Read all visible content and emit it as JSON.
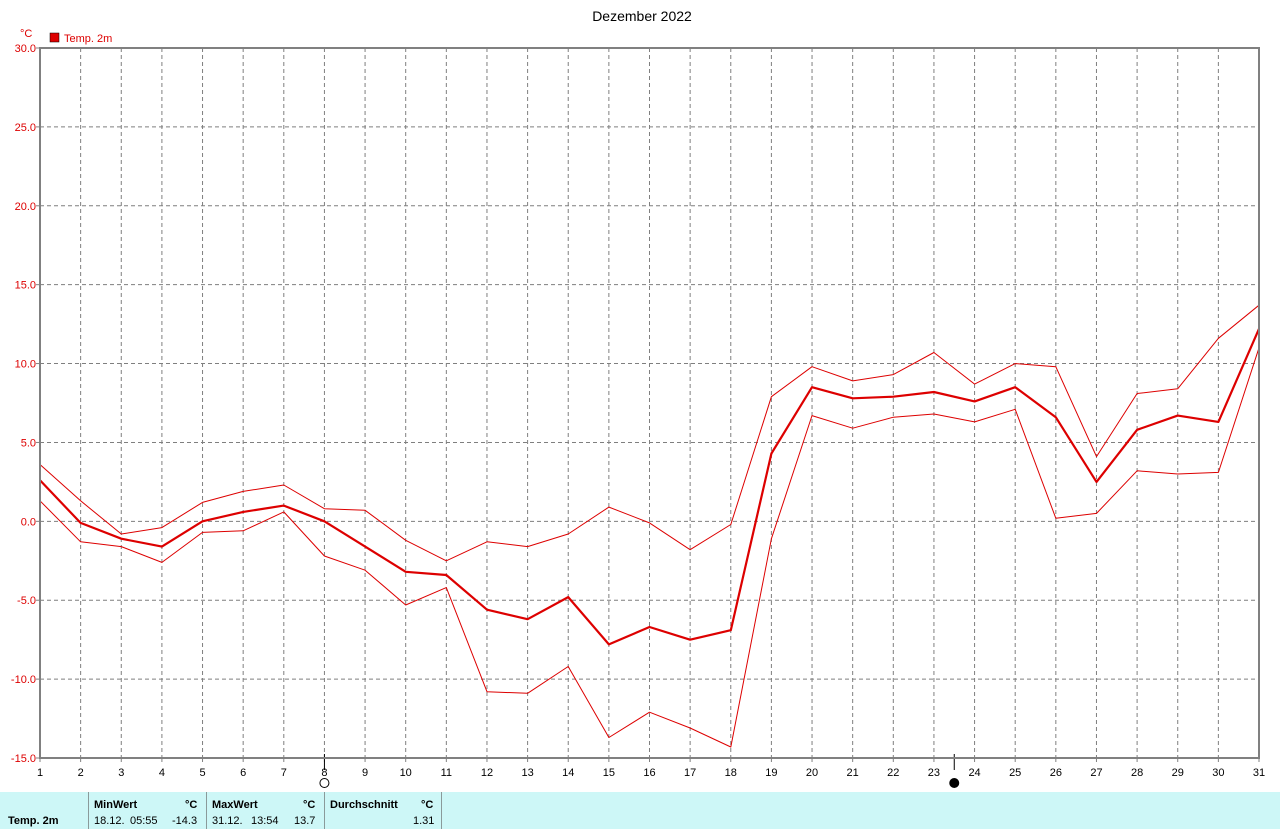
{
  "chart_data": {
    "type": "line",
    "title": "Dezember 2022",
    "ylabel": "°C",
    "ylim": [
      -15,
      30
    ],
    "yticks": [
      "30.0",
      "25.0",
      "20.0",
      "15.0",
      "10.0",
      "5.0",
      "0.0",
      "-5.0",
      "-10.0",
      "-15.0"
    ],
    "ytick_values": [
      30,
      25,
      20,
      15,
      10,
      5,
      0,
      -5,
      -10,
      -15
    ],
    "x": [
      1,
      2,
      3,
      4,
      5,
      6,
      7,
      8,
      9,
      10,
      11,
      12,
      13,
      14,
      15,
      16,
      17,
      18,
      19,
      20,
      21,
      22,
      23,
      24,
      25,
      26,
      27,
      28,
      29,
      30,
      31
    ],
    "xlim": [
      1,
      31
    ],
    "grid": true,
    "legend_position": "top-left",
    "legend": [
      "Temp. 2m"
    ],
    "series": [
      {
        "name": "Temp. 2m",
        "role": "mean",
        "color": "#dd0000",
        "values": [
          2.6,
          -0.1,
          -1.1,
          -1.6,
          0.0,
          0.6,
          1.0,
          0.0,
          -1.6,
          -3.2,
          -3.4,
          -5.6,
          -6.2,
          -4.8,
          -7.8,
          -6.7,
          -7.5,
          -6.9,
          4.3,
          8.5,
          7.8,
          7.9,
          8.2,
          7.6,
          8.5,
          6.6,
          2.5,
          5.8,
          6.7,
          6.3,
          12.2
        ]
      },
      {
        "role": "max",
        "color": "#dd0000",
        "values": [
          3.6,
          1.3,
          -0.8,
          -0.4,
          1.2,
          1.9,
          2.3,
          0.8,
          0.7,
          -1.2,
          -2.5,
          -1.3,
          -1.6,
          -0.8,
          0.9,
          -0.1,
          -1.8,
          -0.2,
          7.9,
          9.8,
          8.9,
          9.3,
          10.7,
          8.7,
          10.0,
          9.8,
          4.1,
          8.1,
          8.4,
          11.6,
          13.7
        ]
      },
      {
        "role": "min",
        "color": "#dd0000",
        "values": [
          1.3,
          -1.3,
          -1.6,
          -2.6,
          -0.7,
          -0.6,
          0.6,
          -2.2,
          -3.1,
          -5.3,
          -4.2,
          -10.8,
          -10.9,
          -9.2,
          -13.7,
          -12.1,
          -13.1,
          -14.3,
          -1.1,
          6.7,
          5.9,
          6.6,
          6.8,
          6.3,
          7.1,
          0.2,
          0.5,
          3.2,
          3.0,
          3.1,
          11.0
        ]
      }
    ],
    "moon_phases": [
      {
        "day": 8,
        "phase": "full"
      },
      {
        "day": 23.5,
        "phase": "new"
      }
    ]
  },
  "stats": {
    "row_label": "Temp. 2m",
    "min": {
      "label": "MinWert",
      "unit": "°C",
      "date": "18.12.",
      "time": "05:55",
      "value": "-14.3"
    },
    "max": {
      "label": "MaxWert",
      "unit": "°C",
      "date": "31.12.",
      "time": "13:54",
      "value": "13.7"
    },
    "avg": {
      "label": "Durchschnitt",
      "unit": "°C",
      "value": "1.31"
    }
  }
}
